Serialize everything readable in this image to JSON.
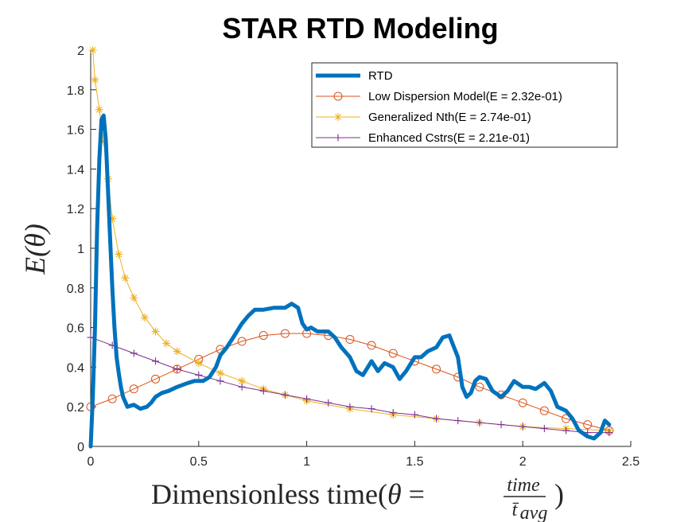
{
  "chart_data": {
    "type": "line",
    "title": "STAR RTD Modeling",
    "xlabel": {
      "prefix": "Dimensionless time(",
      "theta": "θ",
      "equals": " = ",
      "numerator": "time",
      "denominator": "t̄",
      "denominator_sub": "avg",
      "suffix": ")"
    },
    "ylabel": {
      "text": "E(θ)"
    },
    "xlim": [
      0,
      2.5
    ],
    "ylim": [
      0,
      2
    ],
    "xticks": [
      0,
      0.5,
      1,
      1.5,
      2,
      2.5
    ],
    "xtick_labels": [
      "0",
      "0.5",
      "1",
      "1.5",
      "2",
      "2.5"
    ],
    "yticks": [
      0,
      0.2,
      0.4,
      0.6,
      0.8,
      1,
      1.2,
      1.4,
      1.6,
      1.8,
      2
    ],
    "ytick_labels": [
      "0",
      "0.2",
      "0.4",
      "0.6",
      "0.8",
      "1",
      "1.2",
      "1.4",
      "1.6",
      "1.8",
      "2"
    ],
    "grid": false,
    "legend_position": "top-right",
    "series": [
      {
        "name": "RTD",
        "color": "#0072BD",
        "marker": "none",
        "x": [
          0,
          0.01,
          0.02,
          0.03,
          0.04,
          0.05,
          0.06,
          0.07,
          0.08,
          0.09,
          0.1,
          0.11,
          0.12,
          0.13,
          0.14,
          0.15,
          0.17,
          0.2,
          0.23,
          0.26,
          0.28,
          0.3,
          0.33,
          0.36,
          0.4,
          0.45,
          0.48,
          0.52,
          0.55,
          0.58,
          0.6,
          0.63,
          0.66,
          0.7,
          0.73,
          0.76,
          0.8,
          0.85,
          0.9,
          0.93,
          0.96,
          0.98,
          1.0,
          1.02,
          1.05,
          1.08,
          1.1,
          1.13,
          1.16,
          1.2,
          1.23,
          1.26,
          1.3,
          1.33,
          1.36,
          1.4,
          1.43,
          1.46,
          1.5,
          1.53,
          1.56,
          1.6,
          1.63,
          1.66,
          1.7,
          1.72,
          1.74,
          1.76,
          1.78,
          1.8,
          1.83,
          1.86,
          1.9,
          1.93,
          1.96,
          2.0,
          2.03,
          2.06,
          2.1,
          2.13,
          2.16,
          2.2,
          2.23,
          2.26,
          2.3,
          2.33,
          2.36,
          2.38,
          2.4
        ],
        "y": [
          0,
          0.25,
          0.6,
          1.1,
          1.45,
          1.65,
          1.67,
          1.55,
          1.3,
          1.05,
          0.8,
          0.6,
          0.45,
          0.37,
          0.3,
          0.25,
          0.2,
          0.21,
          0.19,
          0.2,
          0.22,
          0.25,
          0.27,
          0.28,
          0.3,
          0.32,
          0.33,
          0.33,
          0.35,
          0.4,
          0.46,
          0.5,
          0.55,
          0.62,
          0.66,
          0.69,
          0.69,
          0.7,
          0.7,
          0.72,
          0.7,
          0.62,
          0.59,
          0.6,
          0.58,
          0.58,
          0.58,
          0.55,
          0.5,
          0.45,
          0.38,
          0.36,
          0.43,
          0.38,
          0.42,
          0.4,
          0.34,
          0.38,
          0.45,
          0.45,
          0.48,
          0.5,
          0.55,
          0.56,
          0.45,
          0.3,
          0.25,
          0.27,
          0.33,
          0.35,
          0.34,
          0.28,
          0.25,
          0.28,
          0.33,
          0.3,
          0.3,
          0.29,
          0.32,
          0.28,
          0.2,
          0.18,
          0.14,
          0.08,
          0.05,
          0.04,
          0.07,
          0.13,
          0.11
        ]
      },
      {
        "name": "Low Dispersion Model(E = 2.32e-01)",
        "color": "#D95319",
        "marker": "circle",
        "x": [
          0,
          0.1,
          0.2,
          0.3,
          0.4,
          0.5,
          0.6,
          0.7,
          0.8,
          0.9,
          1.0,
          1.1,
          1.2,
          1.3,
          1.4,
          1.5,
          1.6,
          1.7,
          1.8,
          1.9,
          2.0,
          2.1,
          2.2,
          2.3,
          2.4
        ],
        "y": [
          0.2,
          0.24,
          0.29,
          0.34,
          0.39,
          0.44,
          0.49,
          0.53,
          0.56,
          0.57,
          0.57,
          0.56,
          0.54,
          0.51,
          0.47,
          0.43,
          0.39,
          0.35,
          0.3,
          0.26,
          0.22,
          0.18,
          0.14,
          0.11,
          0.08
        ]
      },
      {
        "name": "Generalized Nth(E = 2.74e-01)",
        "color": "#EDB120",
        "marker": "star",
        "x": [
          0.01,
          0.02,
          0.04,
          0.06,
          0.08,
          0.1,
          0.13,
          0.16,
          0.2,
          0.25,
          0.3,
          0.35,
          0.4,
          0.5,
          0.6,
          0.7,
          0.8,
          0.9,
          1.0,
          1.2,
          1.4,
          1.6,
          1.8,
          2.0,
          2.2,
          2.4
        ],
        "y": [
          2.0,
          1.85,
          1.7,
          1.54,
          1.35,
          1.15,
          0.97,
          0.85,
          0.75,
          0.65,
          0.58,
          0.52,
          0.48,
          0.42,
          0.37,
          0.33,
          0.29,
          0.26,
          0.23,
          0.19,
          0.16,
          0.14,
          0.12,
          0.1,
          0.09,
          0.08
        ]
      },
      {
        "name": "Enhanced Cstrs(E = 2.21e-01)",
        "color": "#7E2F8E",
        "marker": "plus",
        "x": [
          0,
          0.1,
          0.2,
          0.3,
          0.4,
          0.5,
          0.6,
          0.7,
          0.8,
          0.9,
          1.0,
          1.1,
          1.2,
          1.3,
          1.4,
          1.5,
          1.6,
          1.7,
          1.8,
          1.9,
          2.0,
          2.1,
          2.2,
          2.3,
          2.4
        ],
        "y": [
          0.55,
          0.51,
          0.47,
          0.43,
          0.39,
          0.36,
          0.33,
          0.3,
          0.28,
          0.26,
          0.24,
          0.22,
          0.2,
          0.19,
          0.17,
          0.16,
          0.14,
          0.13,
          0.12,
          0.11,
          0.1,
          0.09,
          0.08,
          0.07,
          0.07
        ]
      }
    ]
  }
}
